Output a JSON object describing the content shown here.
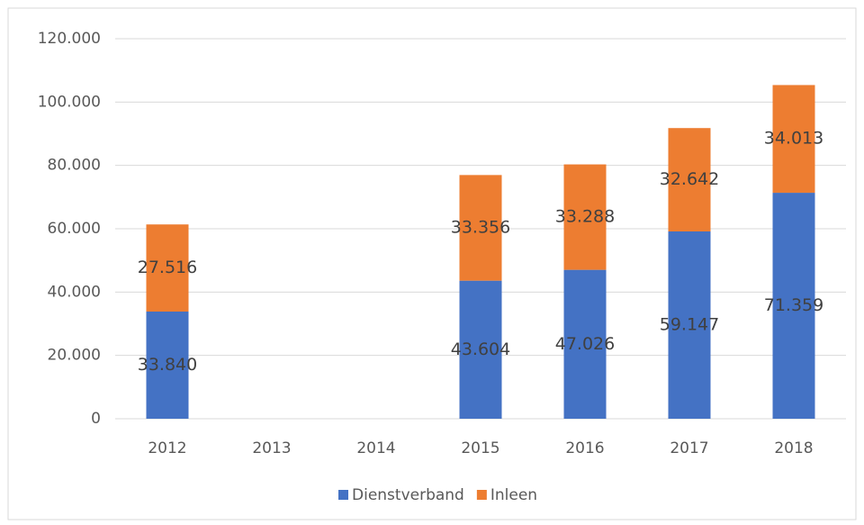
{
  "chart_data": {
    "type": "stacked_bar",
    "categories": [
      "2012",
      "2013",
      "2014",
      "2015",
      "2016",
      "2017",
      "2018"
    ],
    "series": [
      {
        "name": "Dienstverband",
        "color": "#4472c4",
        "values": [
          33840,
          null,
          null,
          43604,
          47026,
          59147,
          71359
        ],
        "value_labels": [
          "33.840",
          null,
          null,
          "43.604",
          "47.026",
          "59.147",
          "71.359"
        ]
      },
      {
        "name": "Inleen",
        "color": "#ed7d31",
        "values": [
          27516,
          null,
          null,
          33356,
          33288,
          32642,
          34013
        ],
        "value_labels": [
          "27.516",
          null,
          null,
          "33.356",
          "33.288",
          "32.642",
          "34.013"
        ]
      }
    ],
    "ylim": [
      0,
      120000
    ],
    "yticks": [
      {
        "value": 0,
        "label": "0"
      },
      {
        "value": 20000,
        "label": "20.000"
      },
      {
        "value": 40000,
        "label": "40.000"
      },
      {
        "value": 60000,
        "label": "60.000"
      },
      {
        "value": 80000,
        "label": "80.000"
      },
      {
        "value": 100000,
        "label": "100.000"
      },
      {
        "value": 120000,
        "label": "120.000"
      }
    ],
    "grid": true,
    "legend": "bottom"
  }
}
